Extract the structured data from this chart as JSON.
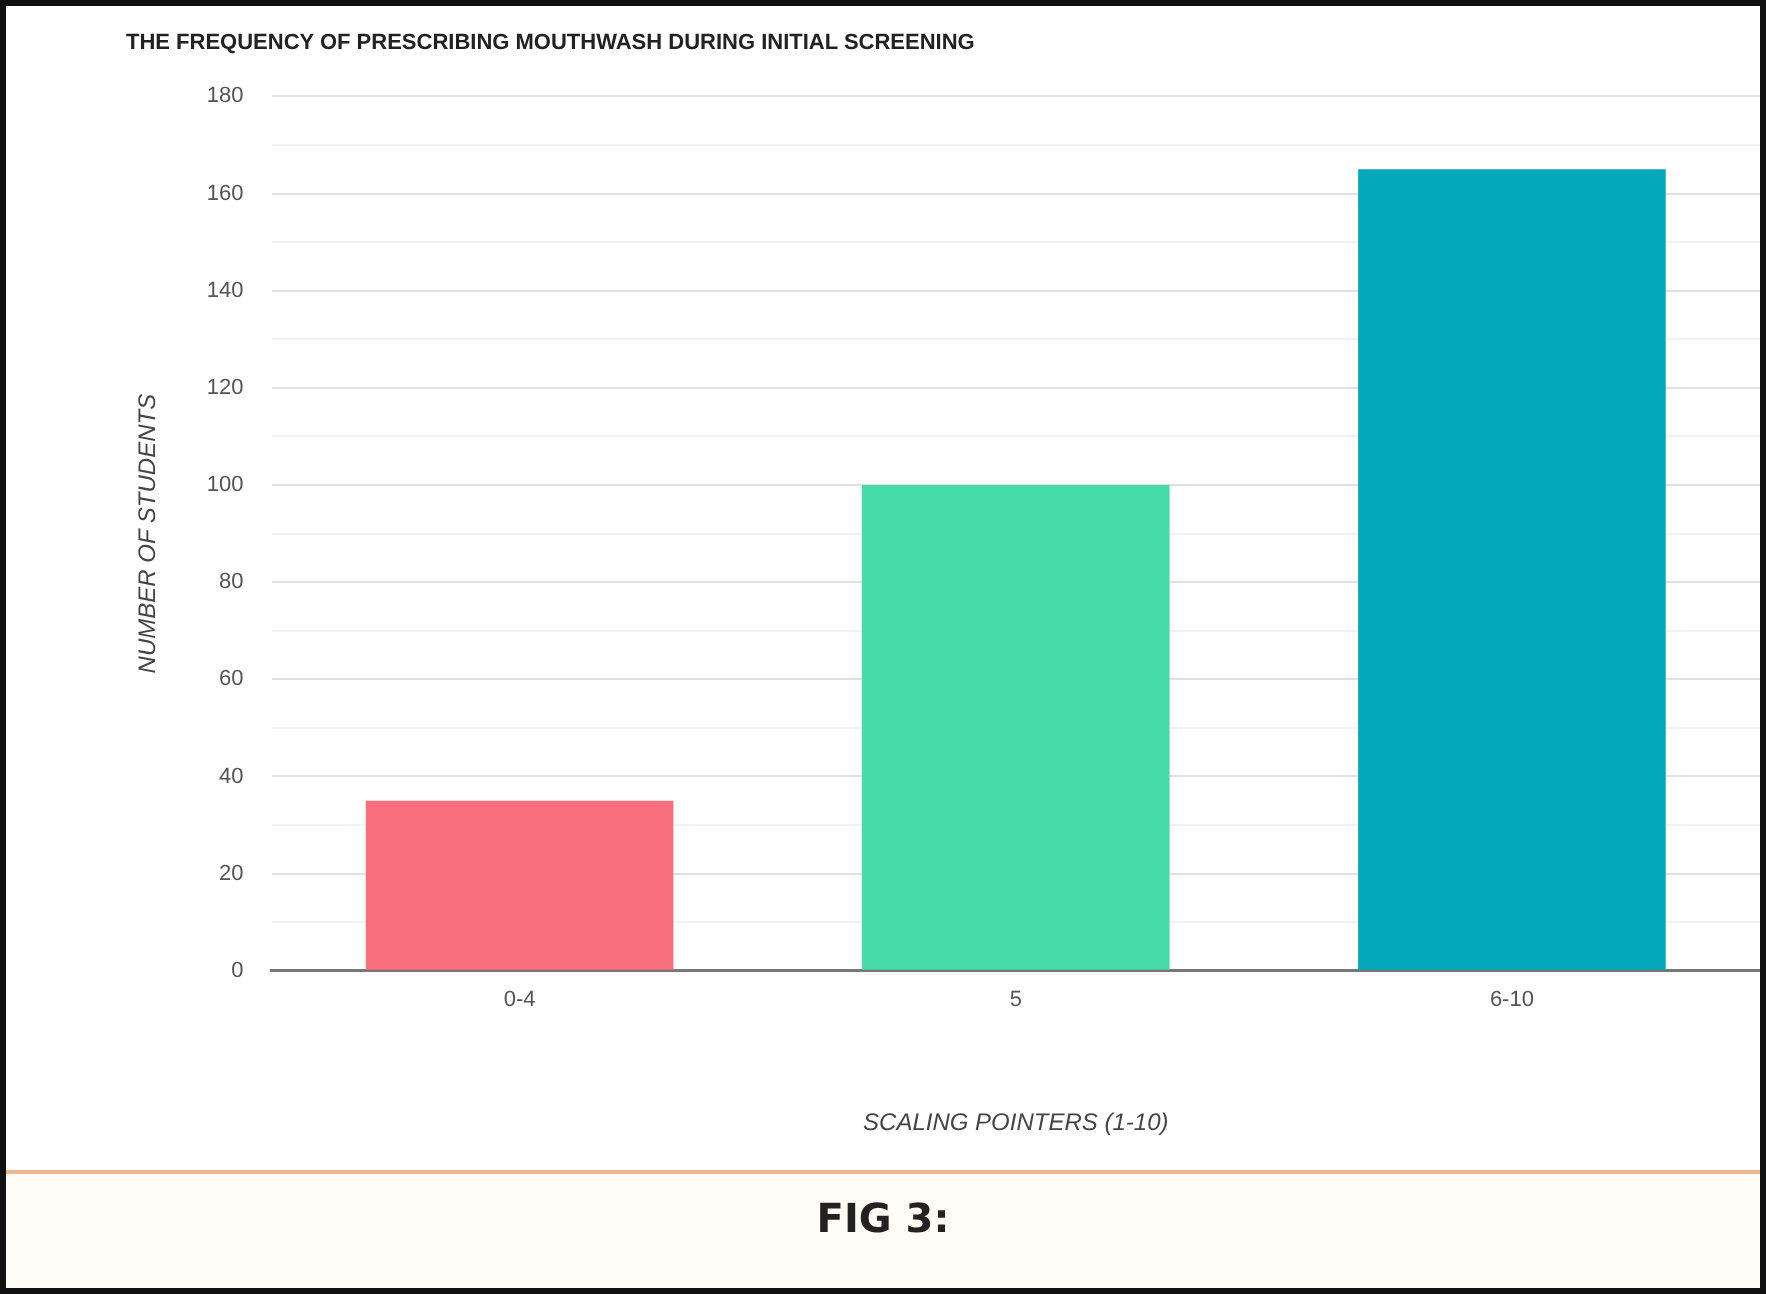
{
  "chart_data": {
    "type": "bar",
    "title": "THE FREQUENCY OF PRESCRIBING MOUTHWASH DURING INITIAL SCREENING",
    "xlabel": "SCALING POINTERS (1-10)",
    "ylabel": "NUMBER OF STUDENTS",
    "categories": [
      "0-4",
      "5",
      "6-10"
    ],
    "values": [
      35,
      100,
      165
    ],
    "colors": [
      "#f76e7c",
      "#46dba8",
      "#03a9bb"
    ],
    "ylim": [
      0,
      180
    ],
    "yticks": [
      0,
      {
        "value": 10,
        "label": null
      },
      20,
      {
        "value": 30,
        "label": null
      },
      40,
      {
        "value": 50,
        "label": null
      },
      60,
      {
        "value": 70,
        "label": null
      },
      80,
      {
        "value": 90,
        "label": null
      },
      100,
      {
        "value": 110,
        "label": null
      },
      120,
      {
        "value": 130,
        "label": null
      },
      140,
      {
        "value": 150,
        "label": null
      },
      160,
      {
        "value": 170,
        "label": null
      },
      180
    ],
    "grid": "y",
    "annotations": [
      "FIG 3:"
    ]
  }
}
